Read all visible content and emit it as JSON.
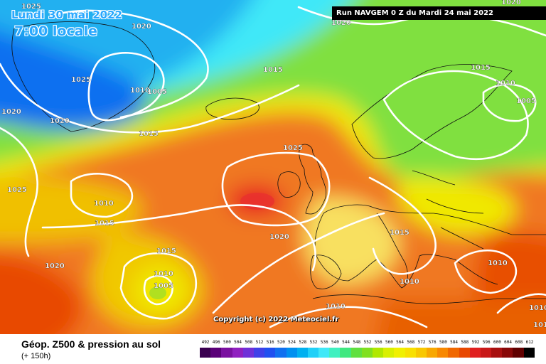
{
  "header": {
    "date_label": "Lundi 30 mai 2022",
    "time_label": "7:00 locale",
    "run_label": "Run NAVGEM 0 Z du Mardi 24 mai 2022"
  },
  "map": {
    "copyright": "Copyright (c) 2022 Meteociel.fr",
    "pressure_labels": [
      {
        "name": "isobar-label-1025-greenland-top",
        "text": "1025"
      },
      {
        "name": "isobar-label-1020-greenland-top",
        "text": "1020"
      },
      {
        "name": "isobar-label-1025-greenland",
        "text": "1025"
      },
      {
        "name": "isobar-label-1010-greenland",
        "text": "1010"
      },
      {
        "name": "isobar-label-1005-greenland",
        "text": "1005"
      },
      {
        "name": "isobar-label-1020-west",
        "text": "1020"
      },
      {
        "name": "isobar-label-1020-greenland-south",
        "text": "1020"
      },
      {
        "name": "isobar-label-1015-north-atlantic",
        "text": "1015"
      },
      {
        "name": "isobar-label-1015-iceland",
        "text": "1015"
      },
      {
        "name": "isobar-label-1020-top",
        "text": "1020"
      },
      {
        "name": "isobar-label-1025-west-atlantic",
        "text": "1025"
      },
      {
        "name": "isobar-label-1010-atlantic-low",
        "text": "1010"
      },
      {
        "name": "isobar-label-1015-atlantic",
        "text": "1015"
      },
      {
        "name": "isobar-label-1025-uk",
        "text": "1025"
      },
      {
        "name": "isobar-label-1020-atlantic",
        "text": "1020"
      },
      {
        "name": "isobar-label-1020-southwest",
        "text": "1020"
      },
      {
        "name": "isobar-label-1015-azores",
        "text": "1015"
      },
      {
        "name": "isobar-label-1010-azores",
        "text": "1010"
      },
      {
        "name": "isobar-label-1005-azores",
        "text": "1005"
      },
      {
        "name": "isobar-label-1010-africa",
        "text": "1010"
      },
      {
        "name": "isobar-label-1015-alps",
        "text": "1015"
      },
      {
        "name": "isobar-label-1010-mediterranean",
        "text": "1010"
      },
      {
        "name": "isobar-label-1010-greece",
        "text": "1010"
      },
      {
        "name": "isobar-label-1010-middle-east",
        "text": "1010"
      },
      {
        "name": "isobar-label-1015-scandinavia",
        "text": "1015"
      },
      {
        "name": "isobar-label-1010-finland",
        "text": "1010"
      },
      {
        "name": "isobar-label-1005-russia",
        "text": "1005"
      },
      {
        "name": "isobar-label-1020-top-right",
        "text": "1020"
      },
      {
        "name": "isobar-label-1010-bottom-right",
        "text": "1010"
      }
    ]
  },
  "footer": {
    "title": "Géop. Z500 & pression au sol",
    "subtitle": "(+ 150h)"
  },
  "legend": {
    "labels": [
      "492",
      "496",
      "500",
      "504",
      "508",
      "512",
      "516",
      "520",
      "524",
      "528",
      "532",
      "536",
      "540",
      "544",
      "548",
      "552",
      "556",
      "560",
      "564",
      "568",
      "572",
      "576",
      "580",
      "584",
      "588",
      "592",
      "596",
      "600",
      "604",
      "608",
      "612"
    ],
    "colors": [
      "#3a0050",
      "#5a0078",
      "#7a10a0",
      "#9020c0",
      "#7030d8",
      "#4040e8",
      "#2050f0",
      "#1070f0",
      "#0090f0",
      "#00b0f0",
      "#20d0f8",
      "#40e8f8",
      "#40f0c0",
      "#40e880",
      "#60e040",
      "#80e020",
      "#b0e800",
      "#d8f000",
      "#f0f000",
      "#f8e000",
      "#f8c800",
      "#f8a800",
      "#f88800",
      "#f06800",
      "#e84800",
      "#e02020",
      "#c81818",
      "#a81010",
      "#880808",
      "#600000",
      "#000000"
    ]
  }
}
